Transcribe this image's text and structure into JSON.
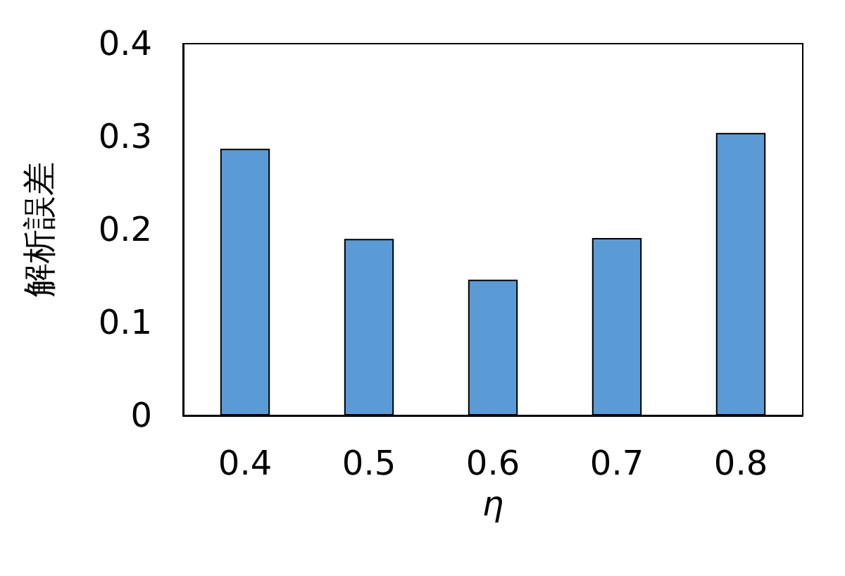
{
  "chart_data": {
    "type": "bar",
    "xlabel": "η",
    "ylabel": "解析誤差",
    "categories": [
      "0.4",
      "0.5",
      "0.6",
      "0.7",
      "0.8"
    ],
    "values": [
      0.287,
      0.19,
      0.146,
      0.191,
      0.304
    ],
    "color": "#5b9bd5",
    "ylim": [
      0,
      0.4
    ],
    "yticks": [
      0,
      0.1,
      0.2,
      0.3,
      0.4
    ],
    "grid": false
  }
}
